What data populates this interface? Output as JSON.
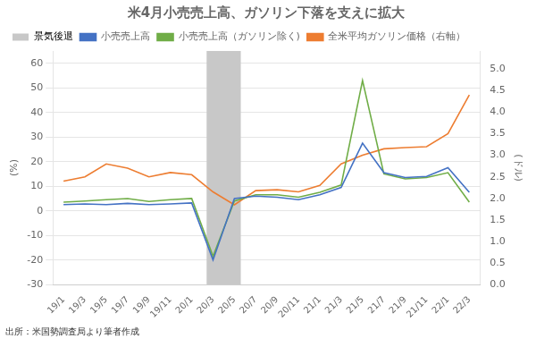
{
  "chart_data": {
    "type": "line",
    "title": "米4月小売売上高、ガソリン下落を支えに拡大",
    "y_label": "(%)",
    "y2_label": "(ドル)",
    "source": "出所：米国勢調査局より筆者作成",
    "categories": [
      "19/1",
      "19/3",
      "19/5",
      "19/7",
      "19/9",
      "19/11",
      "20/1",
      "20/3",
      "20/5",
      "20/7",
      "20/9",
      "20/11",
      "21/1",
      "21/3",
      "21/5",
      "21/7",
      "21/9",
      "21/11",
      "22/1",
      "22/3"
    ],
    "series": [
      {
        "name": "小売売上高",
        "color": "#4472C4",
        "values": [
          2.5,
          2.8,
          2.5,
          3.0,
          2.5,
          2.8,
          3.2,
          -20.0,
          5.0,
          6.0,
          5.5,
          4.5,
          6.5,
          9.5,
          27.5,
          15.5,
          13.5,
          14.0,
          17.5,
          7.5
        ]
      },
      {
        "name": "小売売上高（ガソリン除く)",
        "color": "#70AD47",
        "values": [
          3.5,
          4.0,
          4.5,
          5.0,
          3.8,
          4.5,
          5.0,
          -18.5,
          4.0,
          6.5,
          6.5,
          5.5,
          7.5,
          10.5,
          53.0,
          15.0,
          13.0,
          13.5,
          15.5,
          3.5
        ]
      },
      {
        "name": "全米平均ガソリン価格（右軸）",
        "color": "#ED7D31",
        "axis": "y2",
        "values": [
          2.4,
          2.5,
          2.8,
          2.7,
          2.5,
          2.6,
          2.55,
          2.15,
          1.85,
          2.18,
          2.2,
          2.15,
          2.3,
          2.8,
          3.0,
          3.15,
          3.18,
          3.2,
          3.5,
          4.4
        ]
      }
    ],
    "shaded_spans": [
      {
        "name": "景気後退",
        "start": "20/3",
        "end": "20/5",
        "color": "#c8c8c8"
      }
    ],
    "ylim": [
      -30,
      65
    ],
    "yticks": [
      -30,
      -20,
      -10,
      0,
      10,
      20,
      30,
      40,
      50,
      60
    ],
    "y2lim": [
      0,
      5.42
    ],
    "y2ticks": [
      {
        "value": 0,
        "label": "0.0"
      },
      0.5,
      {
        "value": 1,
        "label": "1.0"
      },
      1.5,
      {
        "value": 2,
        "label": "2.0"
      },
      2.5,
      {
        "value": 3,
        "label": "3.0"
      },
      3.5,
      {
        "value": 4,
        "label": "4.0"
      },
      4.5,
      {
        "value": 5,
        "label": "5.0"
      }
    ],
    "grid": true,
    "legend": "upper left"
  }
}
